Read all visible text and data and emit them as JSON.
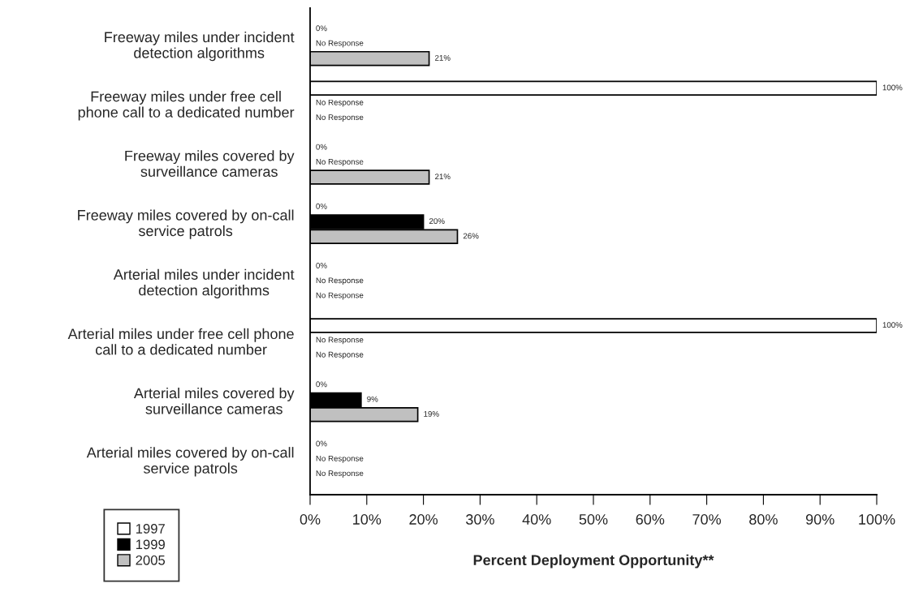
{
  "chart_data": {
    "type": "bar",
    "orientation": "horizontal",
    "categories": [
      "Freeway miles under incident\ndetection algorithms",
      "Freeway miles under free cell\nphone call to a dedicated number",
      "Freeway miles covered by\nsurveillance cameras",
      "Freeway miles covered by on-call\nservice patrols",
      "Arterial miles under incident\ndetection algorithms",
      "Arterial miles under free cell phone\ncall to a dedicated number",
      "Arterial miles covered by\nsurveillance cameras",
      "Arterial miles covered by on-call\nservice patrols"
    ],
    "series": [
      {
        "name": "1997",
        "color": "#ffffff",
        "values": [
          0,
          100,
          0,
          0,
          0,
          100,
          0,
          0
        ],
        "value_labels": [
          "0%",
          "100%",
          "0%",
          "0%",
          "0%",
          "100%",
          "0%",
          "0%"
        ]
      },
      {
        "name": "1999",
        "color": "#000000",
        "values": [
          null,
          null,
          null,
          20,
          null,
          null,
          9,
          null
        ],
        "value_labels": [
          "No Response",
          "No Response",
          "No Response",
          "20%",
          "No Response",
          "No Response",
          "9%",
          "No Response"
        ]
      },
      {
        "name": "2005",
        "color": "#c0c0c0",
        "values": [
          21,
          null,
          21,
          26,
          null,
          null,
          19,
          null
        ],
        "value_labels": [
          "21%",
          "No Response",
          "21%",
          "26%",
          "No Response",
          "No Response",
          "19%",
          "No Response"
        ]
      }
    ],
    "xlim": [
      0,
      100
    ],
    "xticks": [
      {
        "value": 0,
        "label": "0%"
      },
      {
        "value": 10,
        "label": "10%"
      },
      {
        "value": 20,
        "label": "20%"
      },
      {
        "value": 30,
        "label": "30%"
      },
      {
        "value": 40,
        "label": "40%"
      },
      {
        "value": 50,
        "label": "50%"
      },
      {
        "value": 60,
        "label": "60%"
      },
      {
        "value": 70,
        "label": "70%"
      },
      {
        "value": 80,
        "label": "80%"
      },
      {
        "value": 90,
        "label": "90%"
      },
      {
        "value": 100,
        "label": "100%"
      }
    ],
    "xlabel": "Percent Deployment Opportunity**",
    "grid": false,
    "legend": "bottom left"
  }
}
